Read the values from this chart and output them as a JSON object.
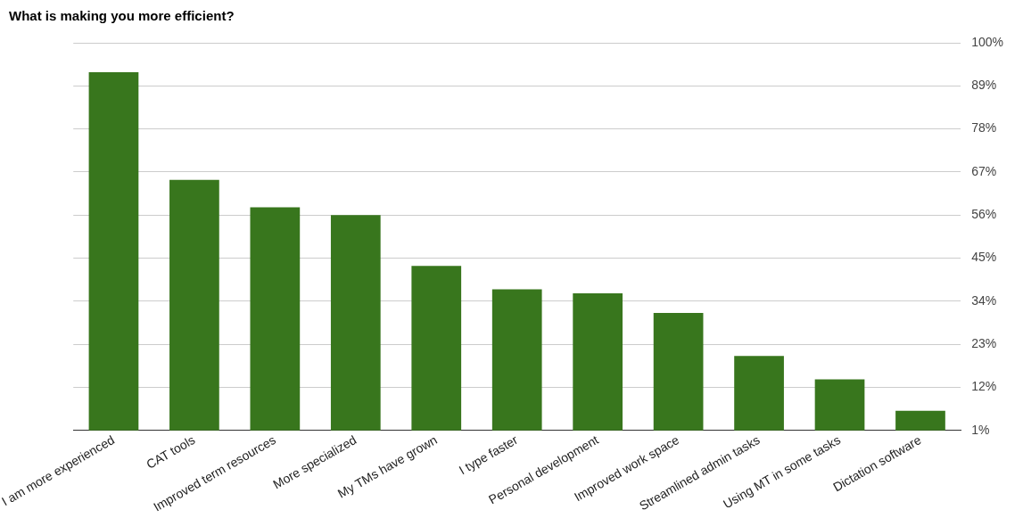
{
  "chart_data": {
    "type": "bar",
    "title": "What is making you more efficient?",
    "categories": [
      "I am more experienced",
      "CAT tools",
      "Improved term resources",
      "More specialized",
      "My TMs have grown",
      "I type faster",
      "Personal development",
      "Improved work space",
      "Streamlined admin tasks",
      "Using MT in some tasks",
      "Dictation software"
    ],
    "values": [
      92.5,
      65,
      58,
      56,
      43,
      37,
      36,
      31,
      20,
      14,
      6
    ],
    "color": "#38761d",
    "ylim": [
      1,
      100
    ],
    "yticks": [
      {
        "value": 1,
        "label": "1%"
      },
      {
        "value": 12,
        "label": "12%"
      },
      {
        "value": 23,
        "label": "23%"
      },
      {
        "value": 34,
        "label": "34%"
      },
      {
        "value": 45,
        "label": "45%"
      },
      {
        "value": 56,
        "label": "56%"
      },
      {
        "value": 67,
        "label": "67%"
      },
      {
        "value": 78,
        "label": "78%"
      },
      {
        "value": 89,
        "label": "89%"
      },
      {
        "value": 100,
        "label": "100%"
      }
    ],
    "grid": "y"
  }
}
